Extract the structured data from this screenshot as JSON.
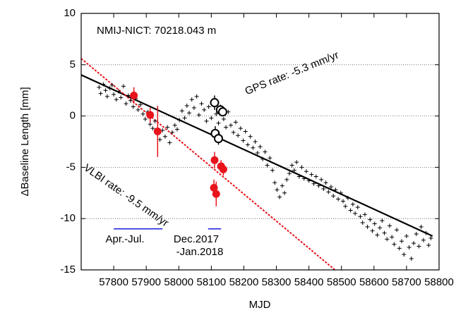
{
  "chart_data": {
    "type": "scatter",
    "xlabel": "MJD",
    "ylabel": "ΔBaseline Length  [mm]",
    "xlim": [
      57700,
      58800
    ],
    "ylim": [
      -15,
      10
    ],
    "xticks": [
      57800,
      57900,
      58000,
      58100,
      58200,
      58300,
      58400,
      58500,
      58600,
      58700,
      58800
    ],
    "yticks": [
      -15,
      -10,
      -5,
      0,
      5,
      10
    ],
    "grid_lines": [
      -10,
      -5,
      0,
      5
    ],
    "series": [
      {
        "color": "#000000",
        "marker": "plus",
        "x": [
          57755,
          57760,
          57768,
          57775,
          57780,
          57788,
          57795,
          57800,
          57808,
          57815,
          57822,
          57830,
          57838,
          57845,
          57852,
          57860,
          57868,
          57875,
          57882,
          57890,
          57897,
          57905,
          57912,
          57920,
          57927,
          57935,
          57942,
          57950,
          57958,
          57965,
          57972,
          57980,
          57988,
          57995,
          58002,
          58010,
          58018,
          58025,
          58032,
          58040,
          58047,
          58055,
          58062,
          58070,
          58078,
          58085,
          58092,
          58100,
          58108,
          58115,
          58122,
          58130,
          58138,
          58145,
          58152,
          58160,
          58168,
          58175,
          58182,
          58190,
          58198,
          58205,
          58212,
          58220,
          58228,
          58235,
          58242,
          58250,
          58258,
          58265,
          58272,
          58280,
          58288,
          58295,
          58302,
          58310,
          58318,
          58325,
          58332,
          58340,
          58348,
          58355,
          58362,
          58370,
          58378,
          58385,
          58392,
          58400,
          58408,
          58415,
          58422,
          58430,
          58438,
          58445,
          58452,
          58460,
          58468,
          58475,
          58482,
          58490,
          58498,
          58505,
          58512,
          58520,
          58528,
          58535,
          58542,
          58550,
          58558,
          58565,
          58572,
          58580,
          58588,
          58595,
          58602,
          58610,
          58618,
          58625,
          58632,
          58640,
          58648,
          58655,
          58662,
          58670,
          58678,
          58685,
          58692,
          58700,
          58708,
          58715,
          58722,
          58730,
          58738,
          58745,
          58752,
          58760,
          58768,
          58775
        ],
        "values": [
          2.8,
          2.2,
          3.1,
          2.5,
          1.9,
          2.7,
          3.0,
          2.1,
          1.6,
          2.4,
          1.8,
          2.9,
          1.2,
          2.0,
          1.5,
          0.9,
          1.7,
          0.6,
          1.1,
          0.2,
          -0.3,
          0.4,
          -0.8,
          -1.2,
          -0.5,
          -1.8,
          -2.3,
          -1.4,
          -2.0,
          -1.1,
          -2.6,
          -1.6,
          -0.9,
          -1.3,
          -0.4,
          0.5,
          -0.2,
          1.0,
          0.3,
          1.6,
          0.8,
          1.9,
          0.1,
          1.2,
          0.6,
          -0.5,
          0.9,
          -0.2,
          1.5,
          0.2,
          -0.7,
          0.8,
          -0.3,
          -1.1,
          0.4,
          -0.9,
          -1.6,
          -0.6,
          -1.9,
          -1.2,
          -2.4,
          -1.5,
          -2.8,
          -2.0,
          -3.1,
          -2.5,
          -3.6,
          -3.0,
          -4.2,
          -3.5,
          -4.8,
          -4.1,
          -5.3,
          -6.5,
          -7.2,
          -7.9,
          -6.8,
          -7.5,
          -6.2,
          -5.6,
          -4.8,
          -5.3,
          -4.5,
          -5.9,
          -5.0,
          -6.1,
          -5.4,
          -6.3,
          -5.7,
          -6.6,
          -5.9,
          -6.8,
          -6.2,
          -7.1,
          -6.5,
          -7.4,
          -6.9,
          -7.8,
          -7.2,
          -8.1,
          -7.5,
          -8.3,
          -8.8,
          -8.0,
          -9.2,
          -8.6,
          -9.5,
          -8.9,
          -9.8,
          -10.4,
          -9.6,
          -10.8,
          -10.1,
          -11.2,
          -10.5,
          -11.6,
          -10.9,
          -10.2,
          -11.4,
          -12.0,
          -10.7,
          -11.8,
          -12.5,
          -11.1,
          -12.9,
          -12.2,
          -13.5,
          -11.7,
          -12.8,
          -13.9,
          -12.4,
          -11.5,
          -12.7,
          -10.8,
          -12.1,
          -11.4,
          -12.6,
          -11.9
        ]
      },
      {
        "color": "#000000",
        "marker": "open-circle",
        "x": [
          58110,
          58128,
          58135,
          58112,
          58122
        ],
        "values": [
          1.3,
          0.6,
          0.4,
          -1.7,
          -2.2
        ],
        "errors": [
          0.7,
          0.5,
          0.4,
          0.7,
          0.6
        ]
      },
      {
        "color": "#e8141c",
        "marker": "filled-circle",
        "x": [
          57862,
          57912,
          57935,
          58110,
          58130,
          58137,
          58108,
          58115
        ],
        "values": [
          2.0,
          0.1,
          -1.5,
          -4.3,
          -4.9,
          -5.2,
          -7.0,
          -7.6
        ],
        "errors": [
          0.8,
          0.7,
          2.5,
          0.8,
          0.6,
          0.6,
          0.8,
          1.2
        ]
      }
    ],
    "fit_lines": [
      {
        "color": "#000000",
        "style": "solid",
        "x": [
          57700,
          58780
        ],
        "values": [
          4.0,
          -11.7
        ]
      },
      {
        "color": "#e8141c",
        "style": "dotted",
        "x": [
          57700,
          58480
        ],
        "values": [
          5.6,
          -15
        ]
      }
    ],
    "periods": [
      {
        "color": "#1a1ae0",
        "x": [
          57800,
          57950
        ],
        "value": -11
      },
      {
        "color": "#1a1ae0",
        "x": [
          58090,
          58130
        ],
        "value": -11
      }
    ],
    "annotations": [
      {
        "text": "NMIJ-NICT: 70218.043 m",
        "color": "#000000"
      },
      {
        "text": "GPS rate: -5.3 mm/yr",
        "color": "#000000"
      },
      {
        "text": "VLBI rate: -9.5 mm/yr",
        "color": "#e8141c"
      },
      {
        "text": "Apr.-Jul.",
        "color": "#1a1ae0"
      },
      {
        "text": "Dec.2017",
        "color": "#1a1ae0"
      },
      {
        "text": "-Jan.2018",
        "color": "#1a1ae0"
      }
    ]
  }
}
